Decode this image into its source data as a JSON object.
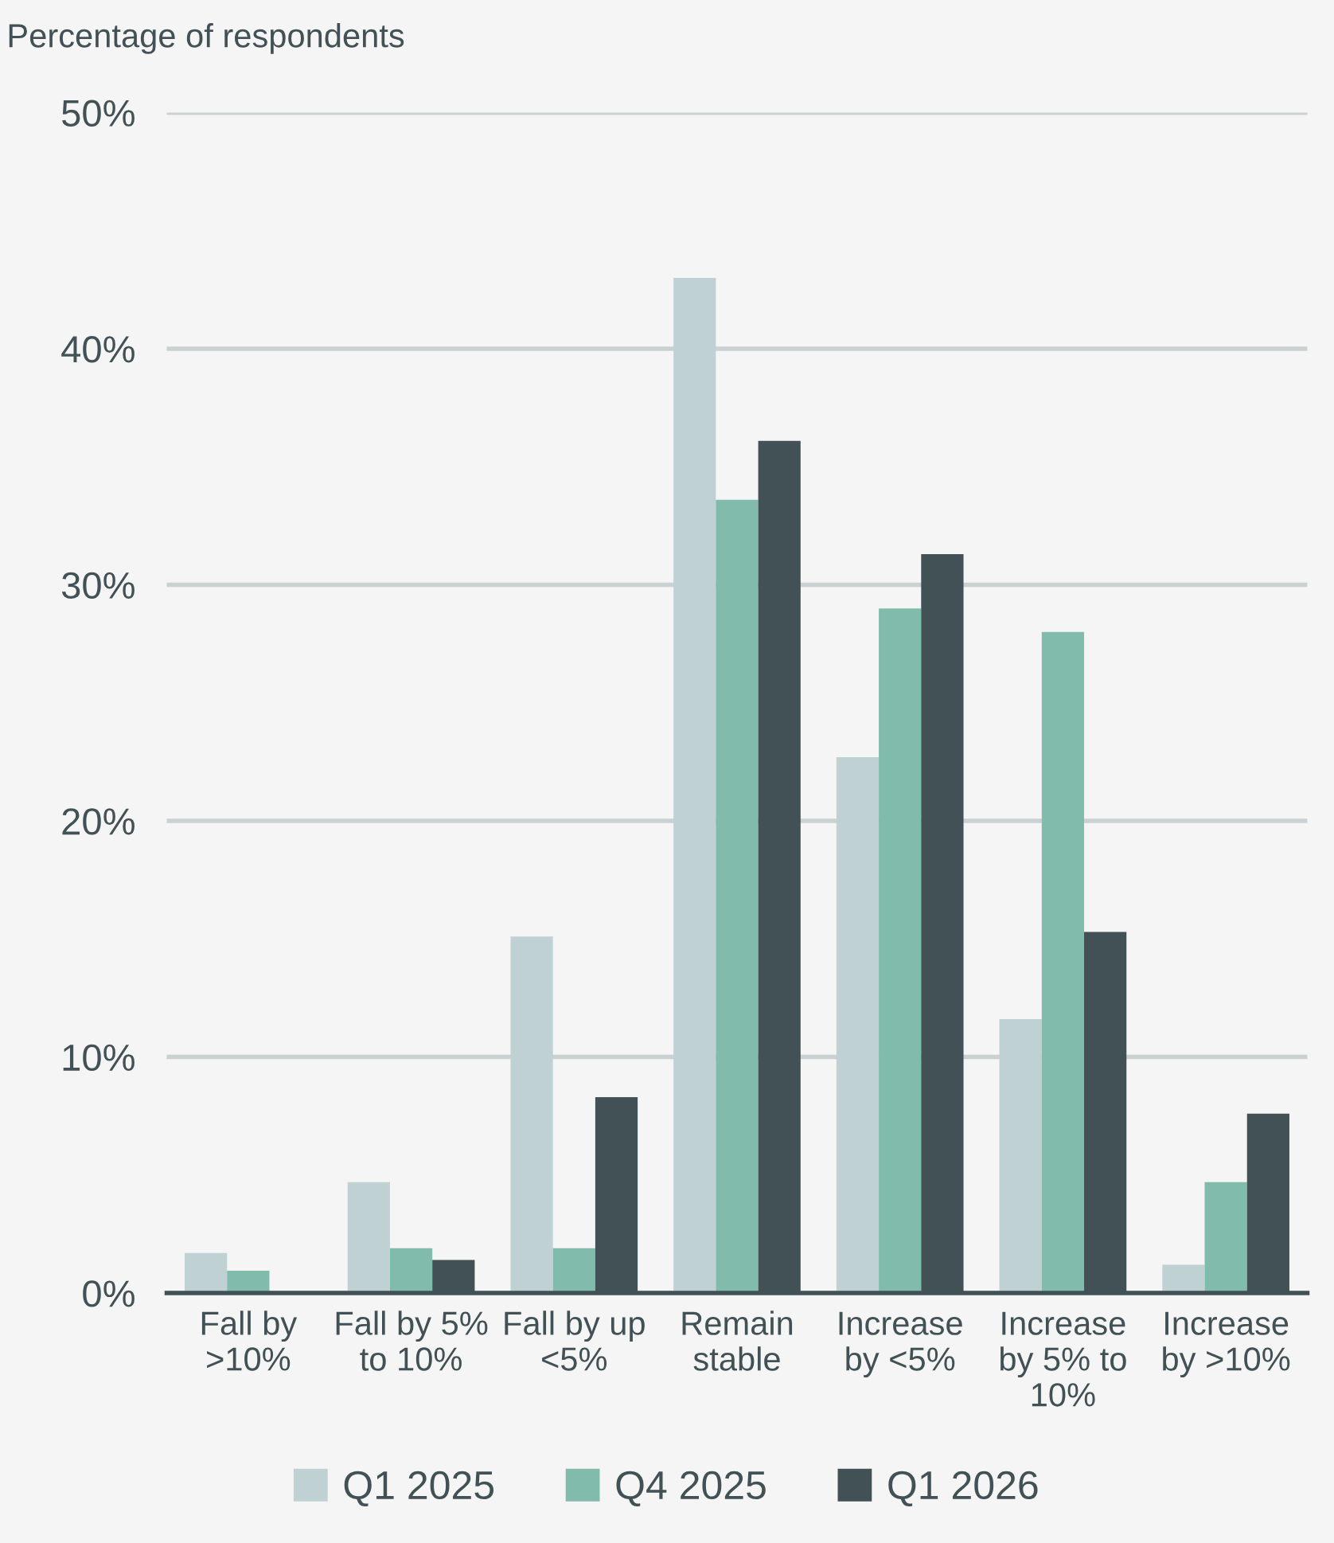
{
  "chart_data": {
    "type": "bar",
    "ylabel": "Percentage of respondents",
    "categories": [
      "Fall by\n>10%",
      "Fall by 5%\nto 10%",
      "Fall by up\n<5%",
      "Remain\nstable",
      "Increase\nby <5%",
      "Increase\nby 5% to\n10%",
      "Increase\nby >10%"
    ],
    "series": [
      {
        "name": "Q1 2025",
        "color": "#c0d1d4",
        "values": [
          1.7,
          4.7,
          15.1,
          43.0,
          22.7,
          11.6,
          1.2
        ]
      },
      {
        "name": "Q4 2025",
        "color": "#80bbab",
        "values": [
          0.95,
          1.9,
          1.9,
          33.6,
          29.0,
          28.0,
          4.7
        ]
      },
      {
        "name": "Q1 2026",
        "color": "#425155",
        "values": [
          null,
          1.4,
          8.3,
          36.1,
          31.3,
          15.3,
          7.6
        ]
      }
    ],
    "ylim": [
      0,
      50
    ],
    "yticks": [
      {
        "value": 0,
        "label": "0%"
      },
      {
        "value": 10,
        "label": "10%"
      },
      {
        "value": 20,
        "label": "20%"
      },
      {
        "value": 30,
        "label": "30%"
      },
      {
        "value": 40,
        "label": "40%"
      },
      {
        "value": 50,
        "label": "50%"
      }
    ],
    "grid": "y",
    "legend": "bottom"
  }
}
